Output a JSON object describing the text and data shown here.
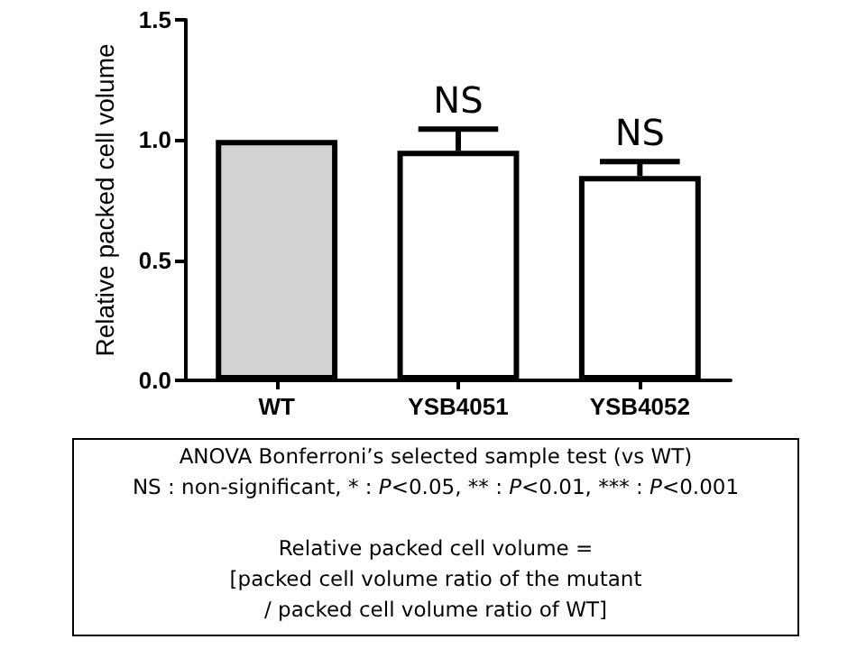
{
  "chart_data": {
    "type": "bar",
    "categories": [
      "WT",
      "YSB4051",
      "YSB4052"
    ],
    "values": [
      1.0,
      0.955,
      0.85
    ],
    "colors": [
      "#d3d3d3",
      "#ffffff",
      "#ffffff"
    ],
    "errors": [
      null,
      [
        0.955,
        1.045
      ],
      [
        0.85,
        0.91
      ]
    ],
    "ylabel": "Relative packed cell volume",
    "ylim": [
      0,
      1.5
    ],
    "yticks": [
      {
        "value": 0,
        "label": "0.0"
      },
      {
        "value": 0.5,
        "label": "0.5"
      },
      {
        "value": 1,
        "label": "1.0"
      },
      {
        "value": 1.5,
        "label": "1.5"
      }
    ],
    "grid": false,
    "annotations": [
      {
        "text": "NS",
        "x": "YSB4051",
        "y": 1.045
      },
      {
        "text": "NS",
        "x": "YSB4052",
        "y": 0.91
      },
      "ANOVA Bonferroni’s selected sample test (vs WT)",
      "NS : non-significant, * : P<0.05, ** : P<0.01, *** : P<0.001",
      "Relative packed cell volume =",
      "[packed cell volume ratio of the mutant",
      "/ packed cell volume ratio of WT]"
    ]
  }
}
